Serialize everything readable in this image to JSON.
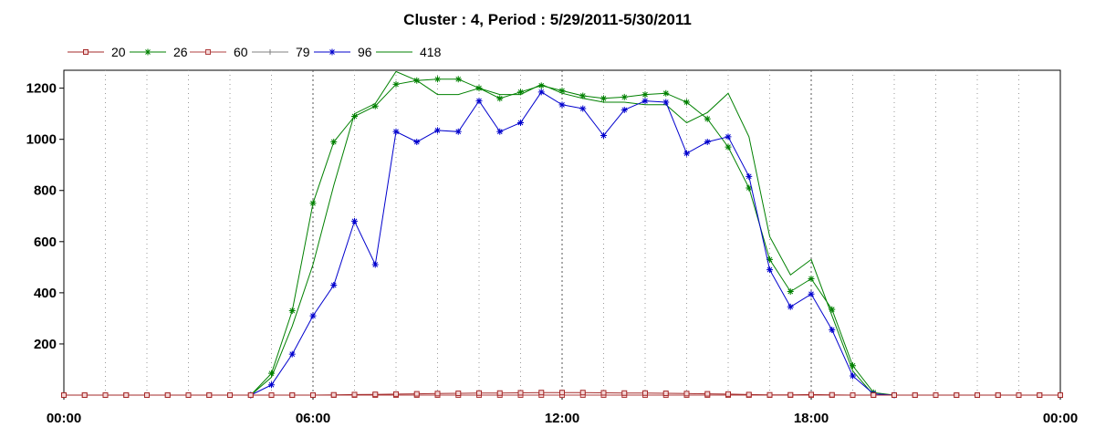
{
  "chart_data": {
    "type": "line",
    "title": "Cluster : 4, Period : 5/29/2011-5/30/2011",
    "xlabel": "",
    "ylabel": "",
    "x_ticks": [
      "00:00",
      "06:00",
      "12:00",
      "18:00",
      "00:00"
    ],
    "y_ticks": [
      200,
      400,
      600,
      800,
      1000,
      1200
    ],
    "xlim": [
      0,
      24
    ],
    "ylim": [
      0,
      1270
    ],
    "grid": true,
    "legend_position": "top-left",
    "x": [
      0,
      0.5,
      1,
      1.5,
      2,
      2.5,
      3,
      3.5,
      4,
      4.5,
      5,
      5.5,
      6,
      6.5,
      7,
      7.5,
      8,
      8.5,
      9,
      9.5,
      10,
      10.5,
      11,
      11.5,
      12,
      12.5,
      13,
      13.5,
      14,
      14.5,
      15,
      15.5,
      16,
      16.5,
      17,
      17.5,
      18,
      18.5,
      19,
      19.5,
      20,
      20.5,
      21,
      21.5,
      22,
      22.5,
      23,
      23.5,
      24
    ],
    "series": [
      {
        "name": "20",
        "color": "#a52a2a",
        "marker": "square",
        "values": [
          0,
          0,
          0,
          0,
          0,
          0,
          0,
          0,
          0,
          0,
          0,
          0,
          0,
          1,
          2,
          3,
          4,
          5,
          6,
          7,
          8,
          8,
          9,
          10,
          10,
          10,
          9,
          8,
          8,
          7,
          6,
          5,
          4,
          2,
          1,
          1,
          2,
          1,
          0,
          0,
          0,
          0,
          0,
          0,
          0,
          0,
          0,
          0,
          0
        ]
      },
      {
        "name": "26",
        "color": "#008000",
        "marker": "star",
        "values": [
          null,
          null,
          null,
          null,
          null,
          null,
          null,
          null,
          null,
          0,
          85,
          330,
          750,
          990,
          1090,
          1130,
          1215,
          1230,
          1235,
          1235,
          1200,
          1160,
          1185,
          1210,
          1190,
          1170,
          1160,
          1165,
          1175,
          1180,
          1145,
          1080,
          970,
          810,
          530,
          405,
          455,
          335,
          115,
          10,
          0,
          null,
          null,
          null,
          null,
          null,
          null,
          null,
          null
        ]
      },
      {
        "name": "60",
        "color": "#b04040",
        "marker": "square",
        "values": [
          0,
          0,
          0,
          0,
          0,
          0,
          0,
          0,
          0,
          0,
          0,
          0,
          0,
          0,
          0,
          0,
          0,
          0,
          0,
          0,
          0,
          0,
          0,
          0,
          0,
          0,
          0,
          0,
          0,
          0,
          0,
          0,
          0,
          0,
          0,
          0,
          0,
          0,
          0,
          0,
          0,
          0,
          0,
          0,
          0,
          0,
          0,
          0,
          0
        ]
      },
      {
        "name": "79",
        "color": "#808080",
        "marker": "plus",
        "values": [
          null,
          null,
          null,
          null,
          null,
          null,
          null,
          null,
          null,
          0,
          0,
          0,
          0,
          0,
          0,
          0,
          0,
          0,
          0,
          0,
          0,
          0,
          0,
          0,
          0,
          0,
          0,
          0,
          0,
          0,
          0,
          0,
          0,
          0,
          0,
          0,
          0,
          0,
          0,
          0,
          0,
          null,
          null,
          null,
          null,
          null,
          null,
          null,
          null
        ]
      },
      {
        "name": "96",
        "color": "#0000cd",
        "marker": "star",
        "values": [
          null,
          null,
          null,
          null,
          null,
          null,
          null,
          null,
          null,
          0,
          40,
          160,
          310,
          430,
          680,
          510,
          1030,
          990,
          1035,
          1030,
          1150,
          1030,
          1065,
          1185,
          1135,
          1120,
          1015,
          1115,
          1150,
          1145,
          945,
          990,
          1010,
          855,
          490,
          345,
          395,
          255,
          75,
          5,
          0,
          null,
          null,
          null,
          null,
          null,
          null,
          null,
          null
        ]
      },
      {
        "name": "418",
        "color": "#008000",
        "marker": "none",
        "values": [
          null,
          null,
          null,
          null,
          null,
          null,
          null,
          null,
          null,
          0,
          70,
          270,
          510,
          820,
          1100,
          1140,
          1265,
          1230,
          1175,
          1175,
          1200,
          1175,
          1175,
          1215,
          1180,
          1160,
          1145,
          1145,
          1135,
          1135,
          1065,
          1105,
          1180,
          1010,
          620,
          470,
          530,
          310,
          95,
          0,
          0,
          null,
          null,
          null,
          null,
          null,
          null,
          null,
          null
        ]
      }
    ]
  }
}
